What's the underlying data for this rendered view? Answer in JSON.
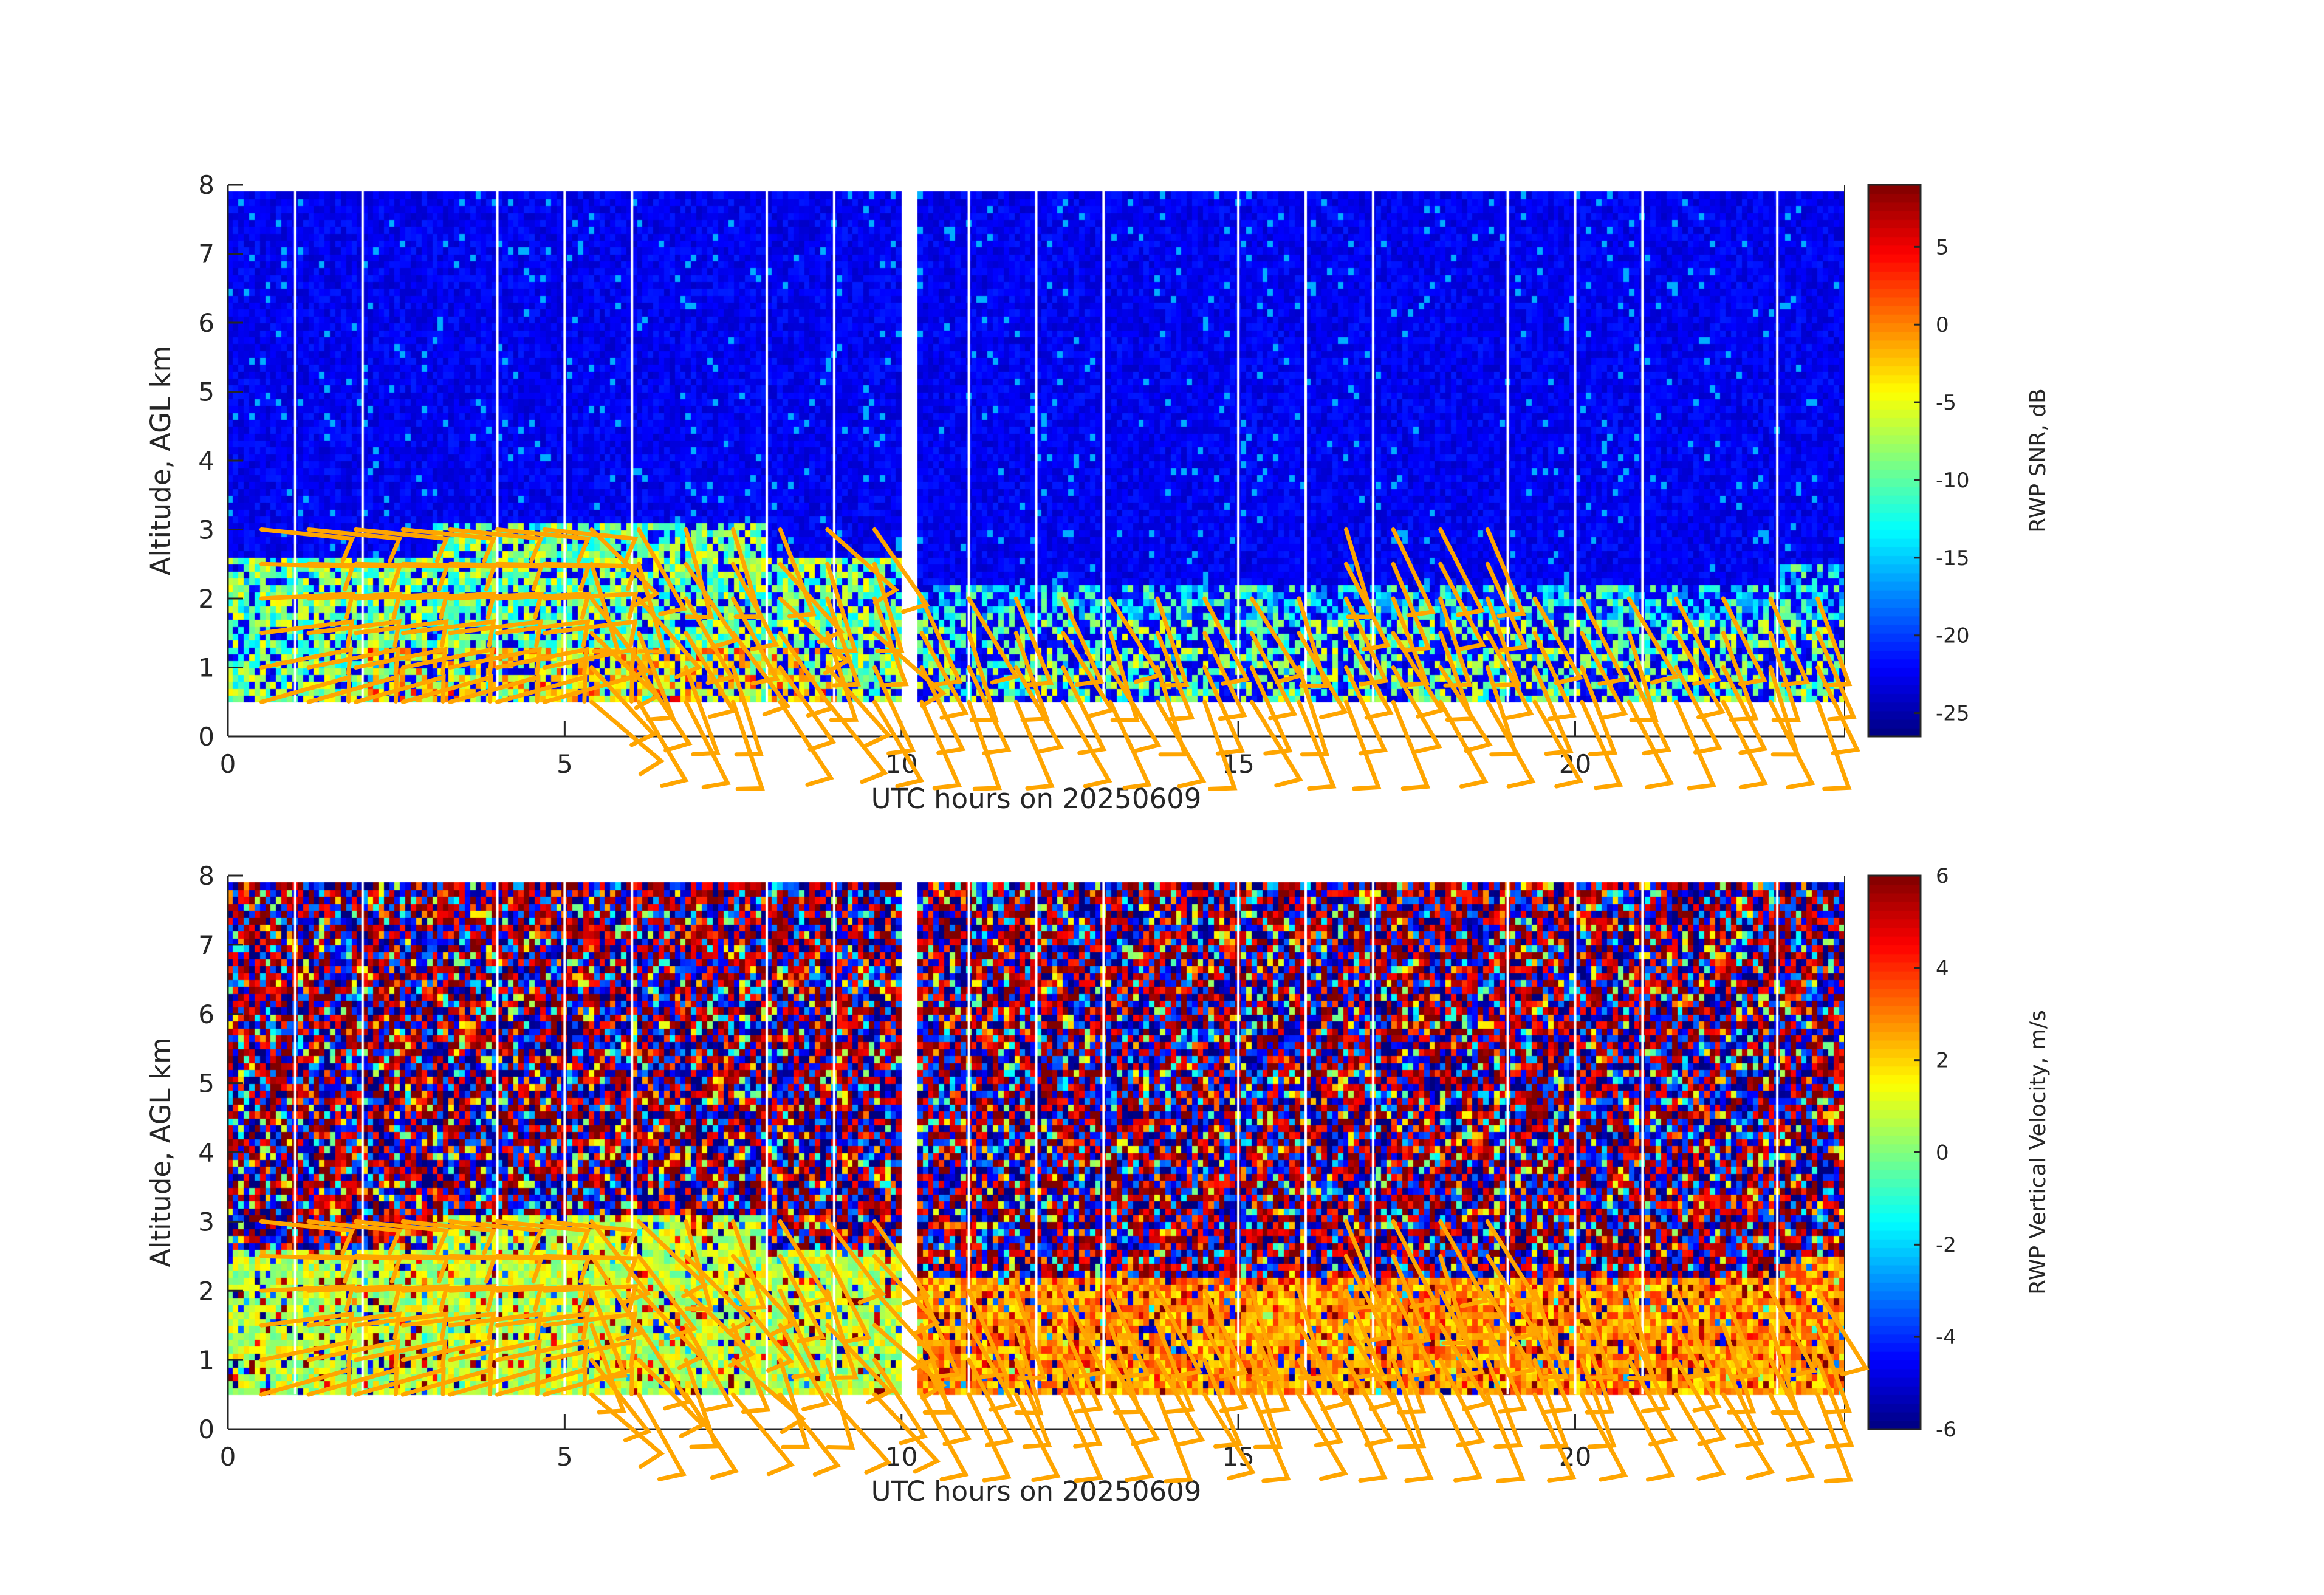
{
  "chart_data": [
    {
      "type": "heatmap",
      "title": "",
      "xlabel": "UTC hours on 20250609",
      "ylabel": "Altitude, AGL km",
      "xlim": [
        0,
        24
      ],
      "ylim": [
        0,
        8
      ],
      "x_ticks": [
        "0",
        "5",
        "10",
        "15",
        "20"
      ],
      "y_ticks": [
        "0",
        "1",
        "2",
        "3",
        "4",
        "5",
        "6",
        "7",
        "8"
      ],
      "colorbar": {
        "label": "RWP SNR, dB",
        "range": [
          -26.5,
          9
        ],
        "ticks": [
          "5",
          "0",
          "-5",
          "-10",
          "-15",
          "-20",
          "-25"
        ],
        "colormap": "jet"
      },
      "overlay": "wind barbs (orange)",
      "data_altitude_range_km": [
        0.5,
        7.9
      ]
    },
    {
      "type": "heatmap",
      "title": "",
      "xlabel": "UTC hours on 20250609",
      "ylabel": "Altitude, AGL km",
      "xlim": [
        0,
        24
      ],
      "ylim": [
        0,
        8
      ],
      "x_ticks": [
        "0",
        "5",
        "10",
        "15",
        "20"
      ],
      "y_ticks": [
        "0",
        "1",
        "2",
        "3",
        "4",
        "5",
        "6",
        "7",
        "8"
      ],
      "colorbar": {
        "label": "RWP Vertical Velocity, m/s",
        "range": [
          -6,
          6
        ],
        "ticks": [
          "6",
          "4",
          "2",
          "0",
          "-2",
          "-4",
          "-6"
        ],
        "colormap": "jet"
      },
      "overlay": "wind barbs (orange)",
      "data_altitude_range_km": [
        0.5,
        7.9
      ]
    }
  ],
  "colors": {
    "barb": "#ffa500",
    "axis": "#262626"
  }
}
